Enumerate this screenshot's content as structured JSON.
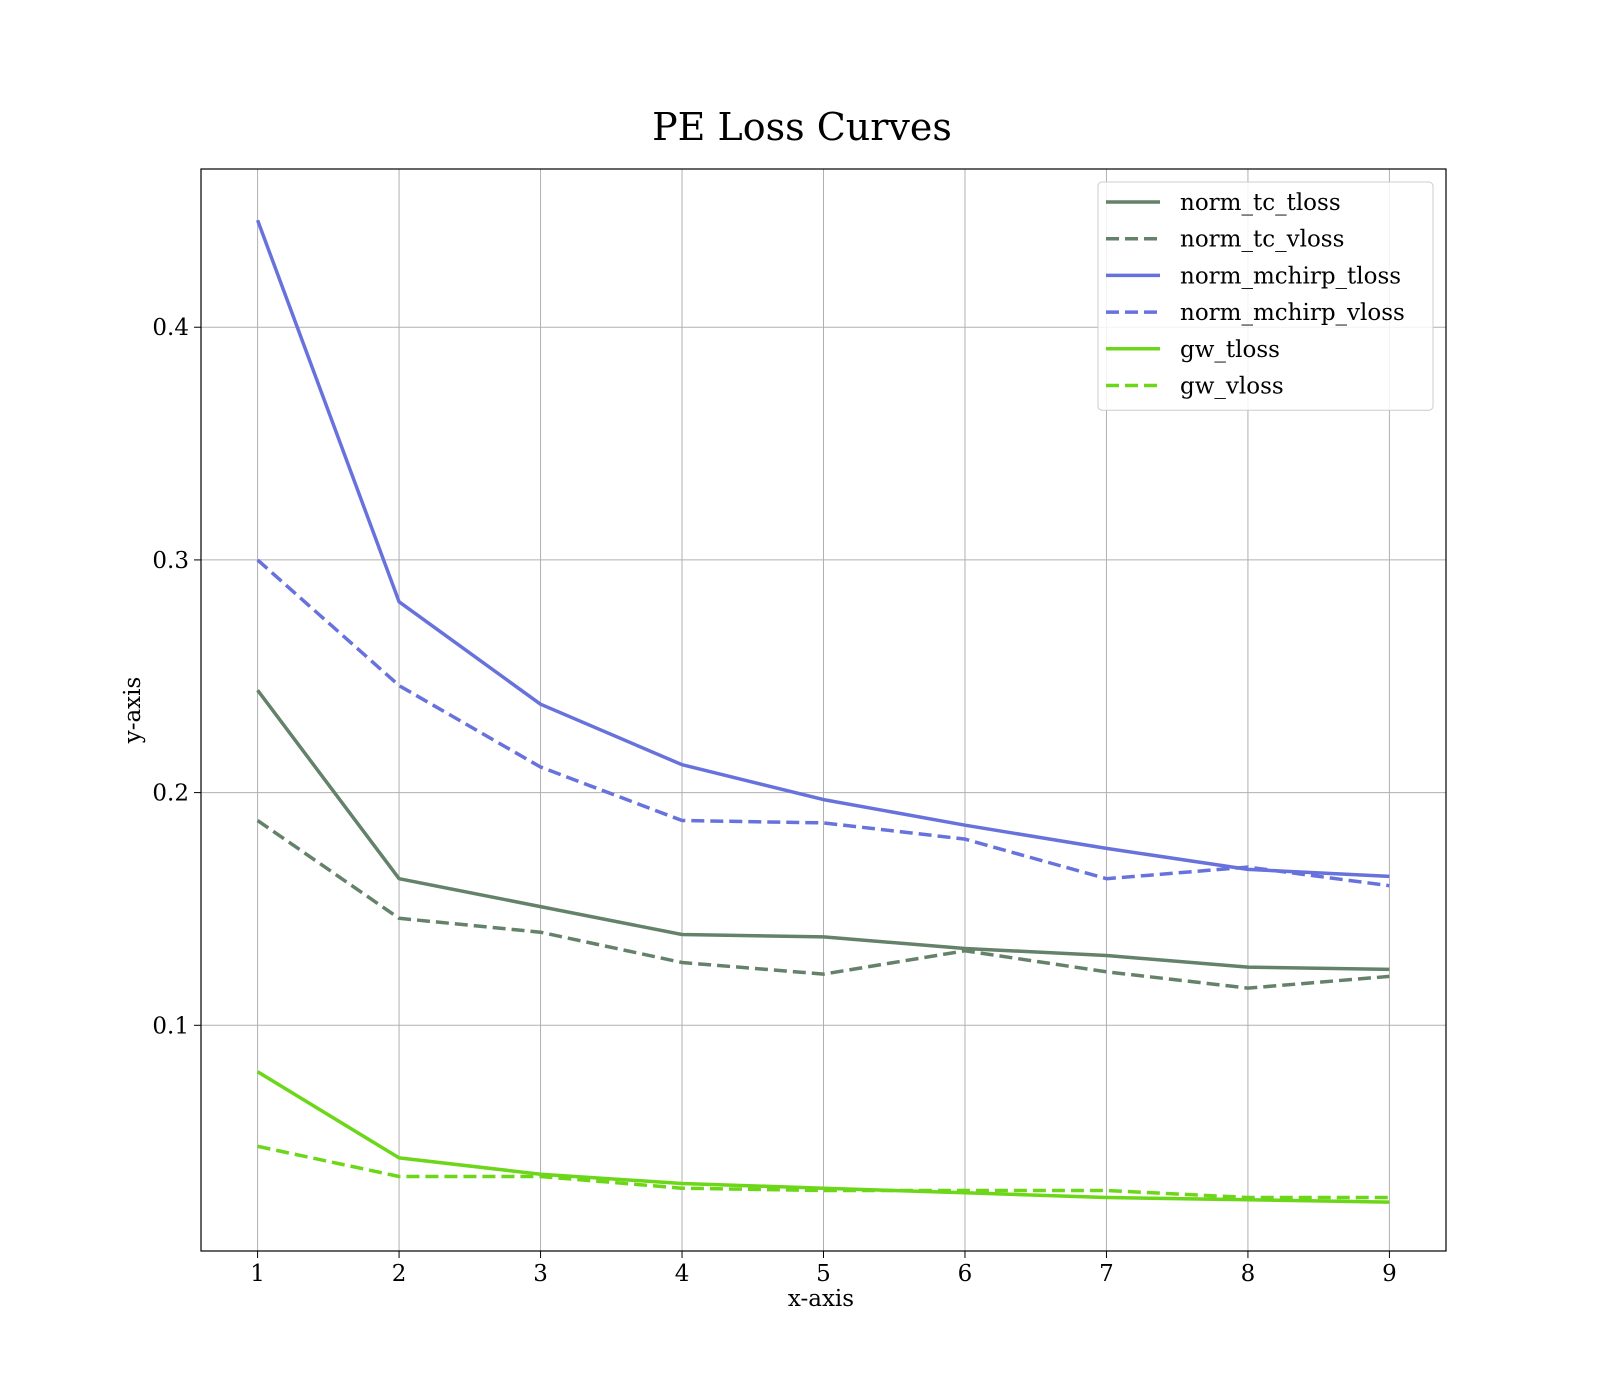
{
  "chart_data": {
    "type": "line",
    "title": "PE Loss Curves",
    "xlabel": "x-axis",
    "ylabel": "y-axis",
    "x": [
      1,
      2,
      3,
      4,
      5,
      6,
      7,
      8,
      9
    ],
    "xlim": [
      0.6,
      9.4
    ],
    "ylim": [
      0.003,
      0.468
    ],
    "xticks": [
      "1",
      "2",
      "3",
      "4",
      "5",
      "6",
      "7",
      "8",
      "9"
    ],
    "yticks": [
      "0.1",
      "0.2",
      "0.3",
      "0.4"
    ],
    "grid": true,
    "legend_position": "top-right",
    "series": [
      {
        "name": "norm_tc_tloss",
        "color": "#64826a",
        "dash": "solid",
        "values": [
          0.244,
          0.163,
          0.151,
          0.139,
          0.138,
          0.133,
          0.13,
          0.125,
          0.124
        ]
      },
      {
        "name": "norm_tc_vloss",
        "color": "#64826a",
        "dash": "dashed",
        "values": [
          0.188,
          0.146,
          0.14,
          0.127,
          0.122,
          0.132,
          0.123,
          0.116,
          0.121
        ]
      },
      {
        "name": "norm_mchirp_tloss",
        "color": "#6772dc",
        "dash": "solid",
        "values": [
          0.446,
          0.282,
          0.238,
          0.212,
          0.197,
          0.186,
          0.176,
          0.167,
          0.164
        ]
      },
      {
        "name": "norm_mchirp_vloss",
        "color": "#6772dc",
        "dash": "dashed",
        "values": [
          0.3,
          0.246,
          0.211,
          0.188,
          0.187,
          0.18,
          0.163,
          0.168,
          0.16
        ]
      },
      {
        "name": "gw_tloss",
        "color": "#6cd618",
        "dash": "solid",
        "values": [
          0.08,
          0.043,
          0.036,
          0.032,
          0.03,
          0.028,
          0.026,
          0.025,
          0.024
        ]
      },
      {
        "name": "gw_vloss",
        "color": "#6cd618",
        "dash": "dashed",
        "values": [
          0.048,
          0.035,
          0.035,
          0.03,
          0.029,
          0.029,
          0.029,
          0.026,
          0.026
        ]
      }
    ]
  }
}
